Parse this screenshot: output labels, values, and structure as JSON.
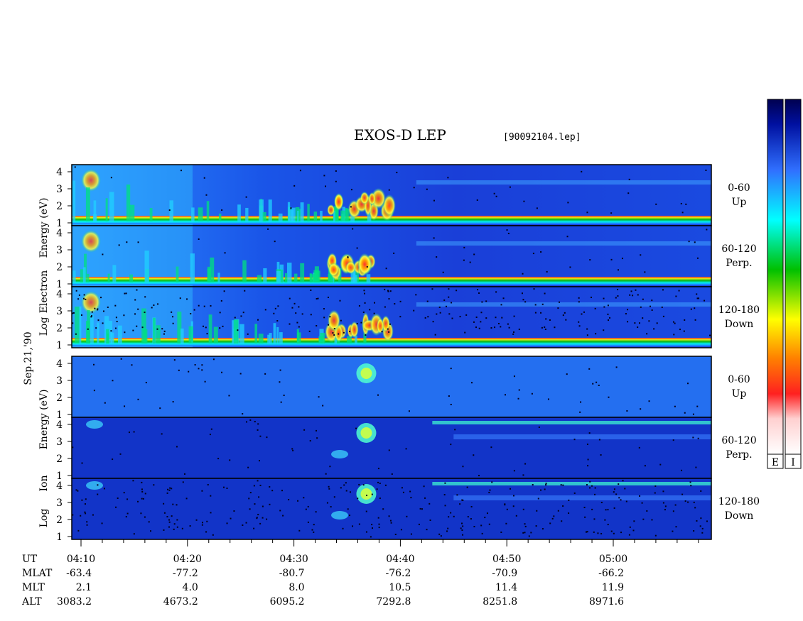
{
  "header": {
    "title": "EXOS-D LEP",
    "filename": "[90092104.lep]"
  },
  "chart_data": {
    "type": "heatmap",
    "title": "EXOS-D LEP",
    "groups": [
      {
        "name": "electron",
        "ylabel_lines": [
          "Electron",
          "Energy (eV)"
        ],
        "ylabel_prefix": "Log",
        "panels": [
          {
            "pitch_angle": "0-60",
            "direction": "Up"
          },
          {
            "pitch_angle": "60-120",
            "direction": "Perp."
          },
          {
            "pitch_angle": "120-180",
            "direction": "Down"
          }
        ]
      },
      {
        "name": "ion",
        "ylabel_lines": [
          "Ion",
          "Energy (eV)"
        ],
        "ylabel_prefix": "Log",
        "panels": [
          {
            "pitch_angle": "0-60",
            "direction": "Up"
          },
          {
            "pitch_angle": "60-120",
            "direction": "Perp."
          },
          {
            "pitch_angle": "120-180",
            "direction": "Down"
          }
        ]
      }
    ],
    "date_label": "Sep.21,'90",
    "y_ticks": [
      "1",
      "2",
      "3",
      "4"
    ],
    "ylim": [
      1,
      4.2
    ],
    "x_ticks": [
      "04:10",
      "04:20",
      "04:30",
      "04:40",
      "04:50",
      "05:00"
    ],
    "x_range_minutes": [
      0,
      60
    ],
    "row_labels": [
      "UT",
      "MLAT",
      "MLT",
      "ALT"
    ],
    "mlat": [
      "-63.4",
      "-77.2",
      "-80.7",
      "-76.2",
      "-70.9",
      "-66.2"
    ],
    "mlt": [
      "2.1",
      "4.0",
      "8.0",
      "10.5",
      "11.4",
      "11.9"
    ],
    "alt": [
      "3083.2",
      "4673.2",
      "6095.2",
      "7292.8",
      "8251.8",
      "8971.6"
    ],
    "colorbars": [
      {
        "label": "E"
      },
      {
        "label": "I"
      }
    ],
    "colormap": [
      "#ffffff",
      "#ff2020",
      "#ff8000",
      "#ffff00",
      "#00c000",
      "#00ffff",
      "#3070ff",
      "#0010a0",
      "#000040"
    ]
  }
}
